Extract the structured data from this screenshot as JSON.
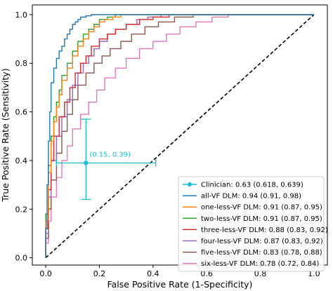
{
  "chart_data": {
    "type": "line",
    "title": "",
    "xlabel": "False Positive Rate (1-Specificity)",
    "ylabel": "True Positive Rate (Sensitivity)",
    "xlim": [
      -0.05,
      1.05
    ],
    "ylim": [
      -0.03,
      1.04
    ],
    "xticks": [
      0.0,
      0.2,
      0.4,
      0.6,
      0.8,
      1.0
    ],
    "xtick_labels": [
      "0.0",
      "0.2",
      "0.4",
      "0.6",
      "0.8",
      "1.0"
    ],
    "yticks": [
      0.0,
      0.2,
      0.4,
      0.6,
      0.8,
      1.0
    ],
    "ytick_labels": [
      "0.0",
      "0.2",
      "0.4",
      "0.6",
      "0.8",
      "1.0"
    ],
    "grid": false,
    "legend_position": "lower-right",
    "diagonal": {
      "style": "dashed",
      "color": "#000000",
      "points": [
        [
          0,
          0
        ],
        [
          1,
          1
        ]
      ]
    },
    "clinician": {
      "label": "Clinician: 0.63 (0.618, 0.639)",
      "color": "#17becf",
      "x": 0.15,
      "y": 0.39,
      "xerr": [
        0.04,
        0.41
      ],
      "yerr": [
        0.24,
        0.57
      ],
      "annotation": "(0.15, 0.39)"
    },
    "series": [
      {
        "name": "all-VF DLM: 0.94 (0.91, 0.98)",
        "color": "#1f77b4",
        "x": [
          0,
          0.005,
          0.01,
          0.015,
          0.02,
          0.03,
          0.04,
          0.05,
          0.06,
          0.07,
          0.08,
          0.09,
          0.1,
          0.11,
          0.12,
          0.13,
          0.15,
          0.17,
          0.2,
          0.25,
          0.3,
          1.0
        ],
        "y": [
          0,
          0.12,
          0.3,
          0.48,
          0.6,
          0.72,
          0.78,
          0.82,
          0.85,
          0.87,
          0.9,
          0.92,
          0.94,
          0.96,
          0.97,
          0.98,
          0.99,
          0.995,
          1.0,
          1.0,
          1.0,
          1.0
        ]
      },
      {
        "name": "one-less-VF DLM: 0.91 (0.87, 0.95)",
        "color": "#ff7f0e",
        "x": [
          0,
          0.01,
          0.02,
          0.03,
          0.04,
          0.05,
          0.06,
          0.08,
          0.1,
          0.12,
          0.14,
          0.16,
          0.18,
          0.2,
          0.22,
          0.25,
          0.28,
          0.32,
          0.36,
          1.0
        ],
        "y": [
          0,
          0.15,
          0.35,
          0.48,
          0.56,
          0.62,
          0.67,
          0.73,
          0.78,
          0.83,
          0.87,
          0.9,
          0.93,
          0.95,
          0.97,
          0.98,
          0.99,
          1.0,
          1.0,
          1.0
        ]
      },
      {
        "name": "two-less-VF DLM: 0.91 (0.87, 0.95)",
        "color": "#2ca02c",
        "x": [
          0,
          0.01,
          0.02,
          0.03,
          0.04,
          0.05,
          0.06,
          0.08,
          0.1,
          0.12,
          0.14,
          0.16,
          0.18,
          0.2,
          0.23,
          0.26,
          0.3,
          0.35,
          1.0
        ],
        "y": [
          0,
          0.18,
          0.38,
          0.5,
          0.58,
          0.64,
          0.69,
          0.75,
          0.8,
          0.85,
          0.89,
          0.92,
          0.94,
          0.96,
          0.98,
          0.99,
          1.0,
          1.0,
          1.0
        ]
      },
      {
        "name": "three-less-VF DLM: 0.88 (0.83, 0.92)",
        "color": "#d62728",
        "x": [
          0,
          0.01,
          0.02,
          0.03,
          0.05,
          0.07,
          0.09,
          0.11,
          0.13,
          0.15,
          0.17,
          0.2,
          0.23,
          0.26,
          0.3,
          0.35,
          0.4,
          0.46,
          0.52,
          1.0
        ],
        "y": [
          0,
          0.12,
          0.28,
          0.4,
          0.5,
          0.58,
          0.64,
          0.7,
          0.76,
          0.8,
          0.83,
          0.87,
          0.9,
          0.92,
          0.94,
          0.96,
          0.98,
          0.99,
          1.0,
          1.0
        ]
      },
      {
        "name": "four-less-VF DLM: 0.87 (0.83, 0.92)",
        "color": "#9467bd",
        "x": [
          0,
          0.01,
          0.02,
          0.04,
          0.06,
          0.08,
          0.1,
          0.12,
          0.14,
          0.16,
          0.18,
          0.2,
          0.23,
          0.26,
          0.3,
          0.34,
          0.38,
          0.43,
          0.5,
          1.0
        ],
        "y": [
          0,
          0.1,
          0.25,
          0.4,
          0.5,
          0.58,
          0.65,
          0.71,
          0.76,
          0.8,
          0.83,
          0.86,
          0.89,
          0.92,
          0.94,
          0.96,
          0.98,
          0.99,
          1.0,
          1.0
        ]
      },
      {
        "name": "five-less-VF DLM: 0.83 (0.78, 0.88)",
        "color": "#8c564b",
        "x": [
          0,
          0.01,
          0.02,
          0.04,
          0.06,
          0.08,
          0.1,
          0.12,
          0.15,
          0.18,
          0.21,
          0.24,
          0.28,
          0.32,
          0.37,
          0.42,
          0.48,
          0.55,
          0.6,
          1.0
        ],
        "y": [
          0,
          0.08,
          0.2,
          0.32,
          0.43,
          0.52,
          0.59,
          0.65,
          0.71,
          0.76,
          0.8,
          0.83,
          0.86,
          0.89,
          0.92,
          0.95,
          0.97,
          0.99,
          1.0,
          1.0
        ]
      },
      {
        "name": "six-less-VF DLM: 0.78 (0.72, 0.84)",
        "color": "#e377c2",
        "x": [
          0,
          0.01,
          0.02,
          0.04,
          0.06,
          0.08,
          0.1,
          0.13,
          0.16,
          0.19,
          0.22,
          0.26,
          0.3,
          0.35,
          0.4,
          0.45,
          0.5,
          0.56,
          0.62,
          0.68,
          0.75,
          1.0
        ],
        "y": [
          0,
          0.06,
          0.15,
          0.25,
          0.33,
          0.4,
          0.46,
          0.53,
          0.59,
          0.64,
          0.69,
          0.74,
          0.78,
          0.82,
          0.86,
          0.89,
          0.92,
          0.95,
          0.97,
          0.99,
          1.0,
          1.0
        ]
      }
    ]
  }
}
